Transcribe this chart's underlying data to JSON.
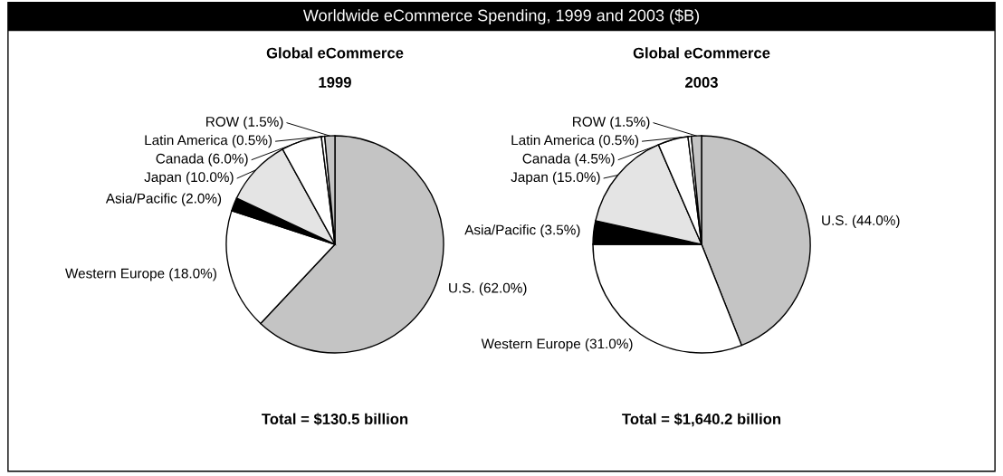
{
  "chart_data": [
    {
      "type": "pie",
      "title": "Global eCommerce",
      "subtitle": "1999",
      "categories": [
        "U.S. (62.0%)",
        "Western Europe (18.0%)",
        "Asia/Pacific (2.0%)",
        "Japan (10.0%)",
        "Canada (6.0%)",
        "Latin America (0.5%)",
        "ROW (1.5%)"
      ],
      "values": [
        62.0,
        18.0,
        2.0,
        10.0,
        6.0,
        0.5,
        1.5
      ],
      "colors": [
        "#c4c4c4",
        "#ffffff",
        "#000000",
        "#e4e4e4",
        "#ffffff",
        "#ffffff",
        "#c4c4c4"
      ],
      "legend": false,
      "annotations": [
        "Worldwide eCommerce Spending, 1999 and 2003 ($B)",
        "Total = $130.5 billion"
      ]
    },
    {
      "type": "pie",
      "title": "Global eCommerce",
      "subtitle": "2003",
      "categories": [
        "U.S. (44.0%)",
        "Western Europe (31.0%)",
        "Asia/Pacific (3.5%)",
        "Japan (15.0%)",
        "Canada (4.5%)",
        "Latin America (0.5%)",
        "ROW (1.5%)"
      ],
      "values": [
        44.0,
        31.0,
        3.5,
        15.0,
        4.5,
        0.5,
        1.5
      ],
      "colors": [
        "#c4c4c4",
        "#ffffff",
        "#000000",
        "#e4e4e4",
        "#ffffff",
        "#ffffff",
        "#c4c4c4"
      ],
      "legend": false,
      "annotations": [
        "Total = $1,640.2 billion"
      ]
    }
  ]
}
